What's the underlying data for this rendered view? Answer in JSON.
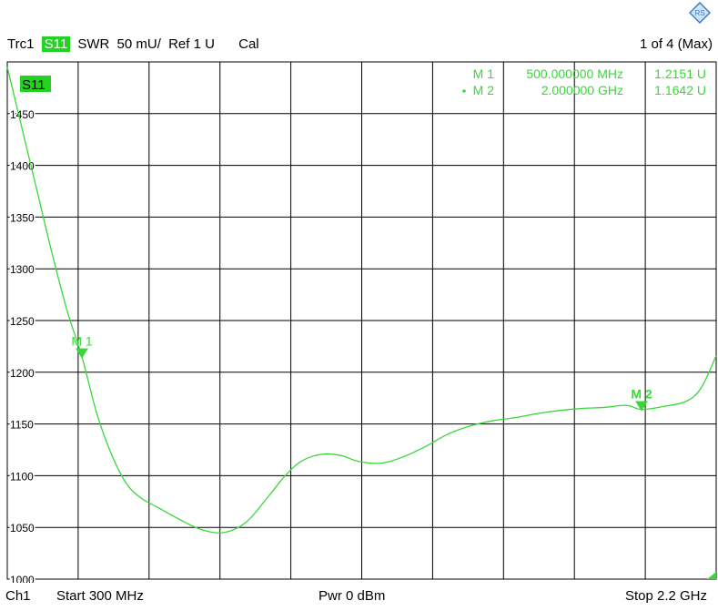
{
  "header": {
    "trace": "Trc1",
    "param": "S11",
    "format": "SWR",
    "scale": "50 mU/",
    "ref": "Ref 1 U",
    "cal": "Cal",
    "page": "1 of 4 (Max)"
  },
  "footer": {
    "channel": "Ch1",
    "start": "Start  300 MHz",
    "power": "Pwr  0 dBm",
    "stop": "Stop  2.2 GHz"
  },
  "markers_table": [
    {
      "label": "M 1",
      "freq": "500.000000 MHz",
      "value": "1.2151  U",
      "active": false
    },
    {
      "label": "M 2",
      "freq": "2.000000  GHz",
      "value": "1.1642  U",
      "active": true
    }
  ],
  "colors": {
    "trace": "#39d839",
    "grid": "#000000",
    "background": "#ffffff",
    "tag": "#22d322"
  },
  "chart_data": {
    "type": "line",
    "trace_label": "S11",
    "xlim_mhz": [
      300,
      2200
    ],
    "ylim": [
      1000,
      1500
    ],
    "yticks": [
      1000,
      1050,
      1100,
      1150,
      1200,
      1250,
      1300,
      1350,
      1400,
      1450
    ],
    "ytick_labels": [
      "1000",
      "1050",
      "1100",
      "1150",
      "1200",
      "1250",
      "1300",
      "1350",
      "1400",
      "1450"
    ],
    "x_divisions": 10,
    "grid": true,
    "series": [
      {
        "x_mhz": [
          300,
          340,
          380,
          420,
          460,
          500,
          540,
          580,
          620,
          660,
          700,
          760,
          820,
          880,
          940,
          1000,
          1040,
          1080,
          1120,
          1160,
          1200,
          1240,
          1300,
          1360,
          1420,
          1480,
          1540,
          1600,
          1660,
          1720,
          1780,
          1840,
          1900,
          1960,
          2000,
          2060,
          2120,
          2160,
          2200
        ],
        "y": [
          1495,
          1435,
          1375,
          1315,
          1260,
          1215,
          1160,
          1120,
          1092,
          1078,
          1070,
          1058,
          1048,
          1045,
          1055,
          1080,
          1098,
          1112,
          1119,
          1121,
          1119,
          1114,
          1112,
          1118,
          1128,
          1140,
          1148,
          1153,
          1156,
          1160,
          1163,
          1165,
          1166,
          1168,
          1164,
          1167,
          1172,
          1185,
          1216
        ]
      }
    ],
    "markers": [
      {
        "label": "M 1",
        "x_mhz": 500,
        "y": 1215.1
      },
      {
        "label": "M 2",
        "x_mhz": 2000,
        "y": 1164.2
      }
    ]
  }
}
